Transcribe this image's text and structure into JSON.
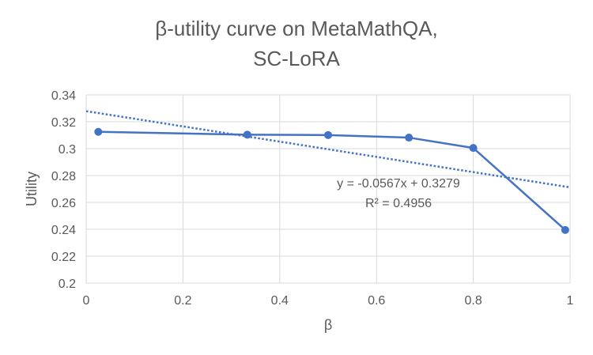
{
  "chart_data": {
    "type": "scatter",
    "title_lines": [
      "β-utility curve on MetaMathQA,",
      "SC-LoRA"
    ],
    "xlabel": "β",
    "ylabel": "Utility",
    "xlim": [
      0,
      1
    ],
    "ylim": [
      0.2,
      0.34
    ],
    "x_ticks": [
      0,
      0.2,
      0.4,
      0.6,
      0.8,
      1
    ],
    "x_tick_labels": [
      "0",
      "0.2",
      "0.4",
      "0.6",
      "0.8",
      "1"
    ],
    "y_ticks": [
      0.2,
      0.22,
      0.24,
      0.26,
      0.28,
      0.3,
      0.32,
      0.34
    ],
    "y_tick_labels": [
      "0.2",
      "0.22",
      "0.24",
      "0.26",
      "0.28",
      "0.3",
      "0.32",
      "0.34"
    ],
    "grid": true,
    "series": [
      {
        "color": "#4472C4",
        "x": [
          0.025,
          0.333,
          0.5,
          0.667,
          0.8,
          0.99
        ],
        "y": [
          0.3125,
          0.3104,
          0.3101,
          0.3082,
          0.3005,
          0.2395
        ]
      }
    ],
    "trendline": {
      "type": "linear",
      "slope": -0.0567,
      "intercept": 0.3279,
      "equation": "y = -0.0567x + 0.3279",
      "r_squared": "R² = 0.4956",
      "color": "#4472C4",
      "style": "dotted"
    },
    "colors": {
      "grid": "#d9d9d9",
      "text": "#595959",
      "title": "#595959"
    }
  }
}
